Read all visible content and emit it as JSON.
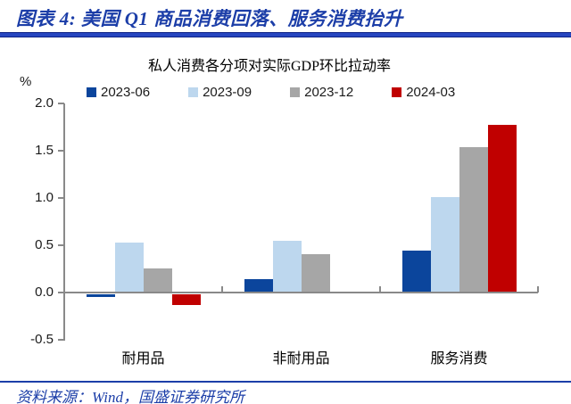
{
  "header": {
    "title": "图表 4: 美国 Q1 商品消费回落、服务消费抬升"
  },
  "chart_data": {
    "type": "bar",
    "title": "私人消费各分项对实际GDP环比拉动率",
    "unit_label": "%",
    "categories": [
      "耐用品",
      "非耐用品",
      "服务消费"
    ],
    "series": [
      {
        "name": "2023-06",
        "color": "#0B459C",
        "values": [
          -0.03,
          0.14,
          0.44
        ]
      },
      {
        "name": "2023-09",
        "color": "#BDD7EE",
        "values": [
          0.53,
          0.55,
          1.01
        ]
      },
      {
        "name": "2023-12",
        "color": "#A6A6A6",
        "values": [
          0.25,
          0.41,
          1.54
        ]
      },
      {
        "name": "2024-03",
        "color": "#C00000",
        "values": [
          -0.11,
          0.0,
          1.77
        ]
      }
    ],
    "ylim": [
      -0.5,
      2.0
    ],
    "yticks": [
      2.0,
      1.5,
      1.0,
      0.5,
      0.0,
      -0.5
    ],
    "grid": false,
    "legend_position": "top",
    "xlabel": "",
    "ylabel": "%"
  },
  "footer": {
    "source": "资料来源：Wind，国盛证券研究所"
  }
}
